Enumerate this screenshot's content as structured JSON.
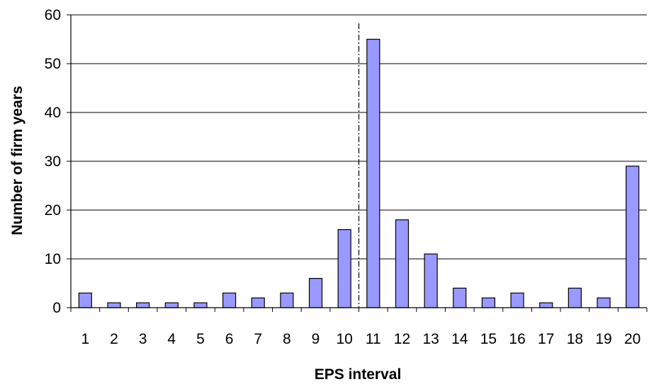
{
  "chart_data": {
    "type": "bar",
    "title": "",
    "xlabel": "EPS interval",
    "ylabel": "Number of firm  years",
    "categories": [
      "1",
      "2",
      "3",
      "4",
      "5",
      "6",
      "7",
      "8",
      "9",
      "10",
      "11",
      "12",
      "13",
      "14",
      "15",
      "16",
      "17",
      "18",
      "19",
      "20"
    ],
    "values": [
      3,
      1,
      1,
      1,
      1,
      3,
      2,
      3,
      6,
      16,
      55,
      18,
      11,
      4,
      2,
      3,
      1,
      4,
      2,
      29
    ],
    "ylim": [
      0,
      60
    ],
    "yticks": [
      0,
      10,
      20,
      30,
      40,
      50,
      60
    ],
    "grid": true,
    "legend": "none",
    "reference_line": {
      "after_category": "10",
      "style": "dash-dot"
    },
    "colors": {
      "bar_fill": "#9999ff",
      "bar_stroke": "#000000",
      "grid": "#000000",
      "axis": "#000000"
    }
  }
}
